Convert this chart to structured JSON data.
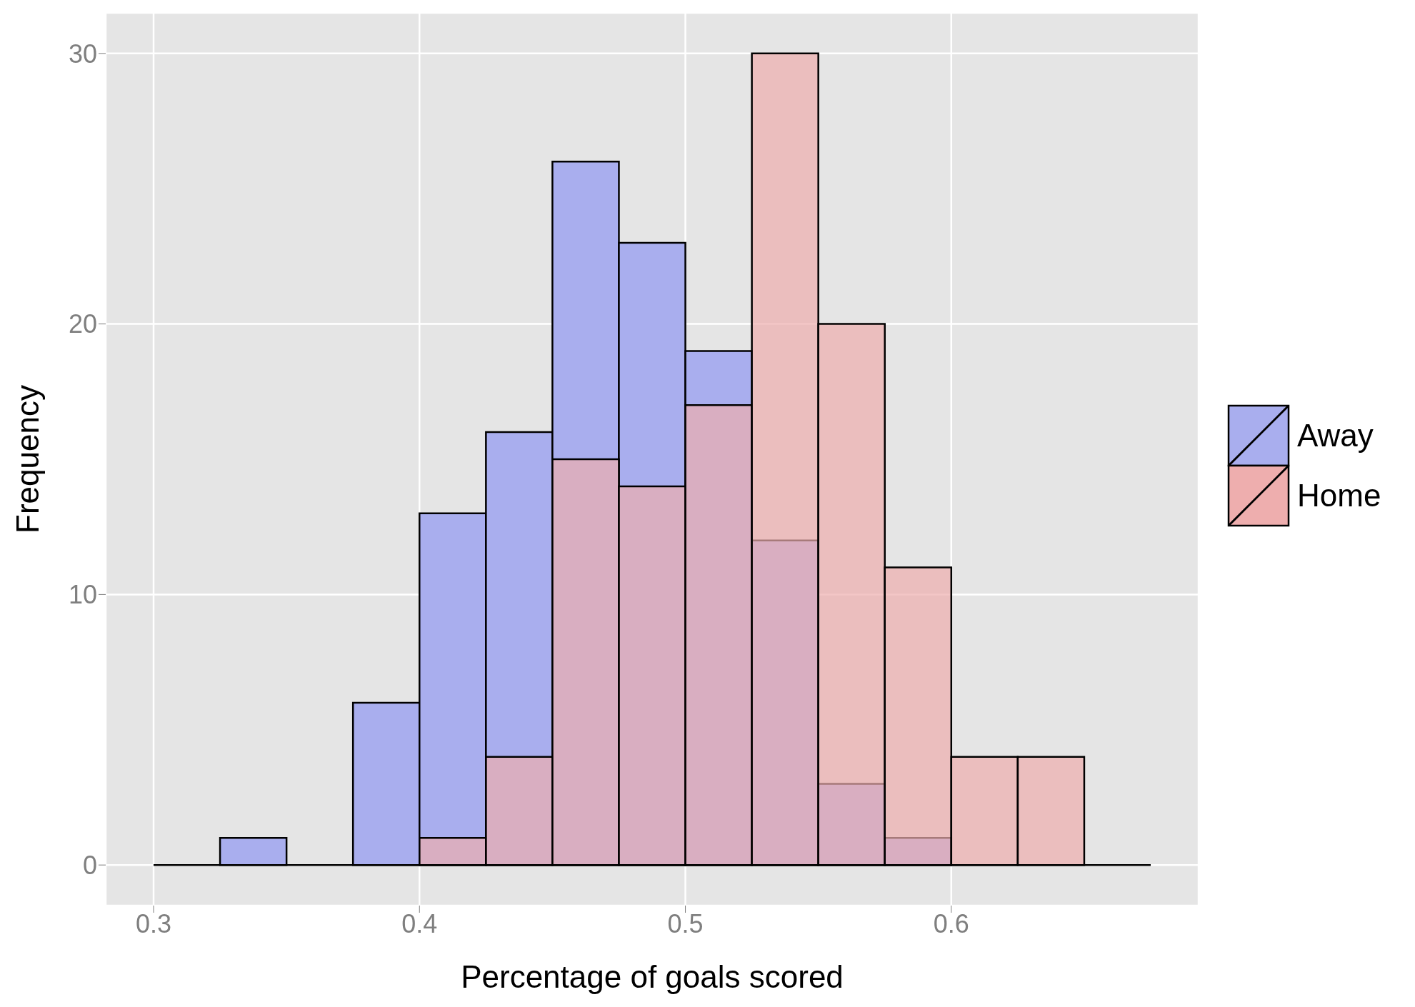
{
  "chart_data": {
    "type": "histogram",
    "xlabel": "Percentage of goals scored",
    "ylabel": "Frequency",
    "bins": [
      0.3,
      0.325,
      0.35,
      0.375,
      0.4,
      0.425,
      0.45,
      0.475,
      0.5,
      0.525,
      0.55,
      0.575,
      0.6,
      0.625,
      0.65,
      0.675
    ],
    "series": [
      {
        "name": "Away",
        "color": "#a9aeee",
        "values": [
          0,
          1,
          0,
          6,
          13,
          16,
          26,
          23,
          19,
          12,
          3,
          1,
          0,
          0,
          0
        ]
      },
      {
        "name": "Home",
        "color": "#eeaeae",
        "values": [
          0,
          0,
          0,
          0,
          1,
          4,
          15,
          14,
          17,
          30,
          20,
          11,
          4,
          4,
          0
        ]
      }
    ],
    "xlim": [
      0.282,
      0.693
    ],
    "ylim": [
      -1.5,
      31.5
    ],
    "xticks": [
      0.3,
      0.4,
      0.5,
      0.6
    ],
    "yticks": [
      0,
      10,
      20,
      30
    ],
    "grid": true,
    "legend": "right"
  }
}
